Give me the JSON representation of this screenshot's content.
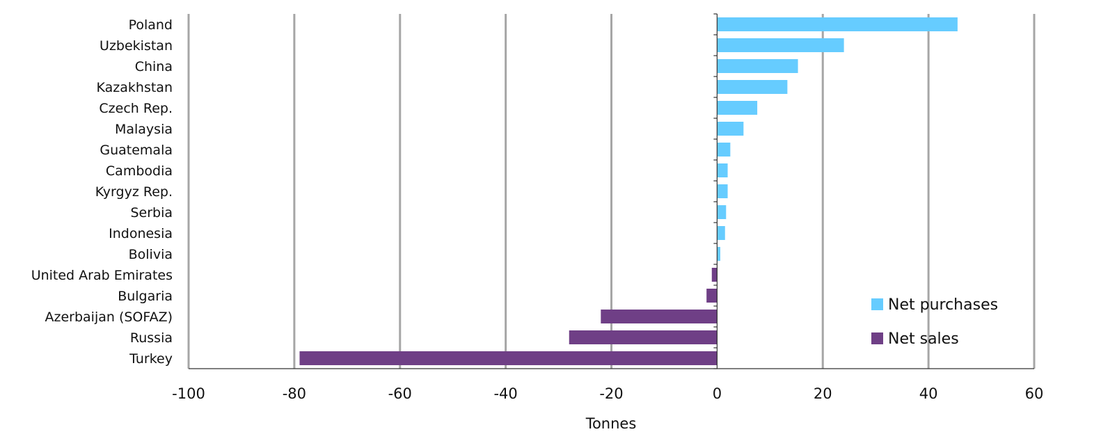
{
  "chart_data": {
    "type": "bar",
    "orientation": "horizontal",
    "title": "",
    "xlabel": "Tonnes",
    "ylabel": "",
    "xlim": [
      -100,
      60
    ],
    "xticks": [
      -100,
      -80,
      -60,
      -40,
      -20,
      0,
      20,
      40,
      60
    ],
    "xtick_labels": [
      "-100",
      "-80",
      "-60",
      "-40",
      "-20",
      "0",
      "20",
      "40",
      "60"
    ],
    "grid": "vertical",
    "legend_position": "bottom-right",
    "categories": [
      "Poland",
      "Uzbekistan",
      "China",
      "Kazakhstan",
      "Czech Rep.",
      "Malaysia",
      "Guatemala",
      "Cambodia",
      "Kyrgyz Rep.",
      "Serbia",
      "Indonesia",
      "Bolivia",
      "United Arab Emirates",
      "Bulgaria",
      "Azerbaijan (SOFAZ)",
      "Russia",
      "Turkey"
    ],
    "values": [
      45.5,
      24,
      15.3,
      13.3,
      7.6,
      5.0,
      2.5,
      2.0,
      2.0,
      1.7,
      1.5,
      0.6,
      -1.0,
      -2.0,
      -22,
      -28,
      -79
    ],
    "series": [
      {
        "name": "Net purchases",
        "color": "#66ccff"
      },
      {
        "name": "Net sales",
        "color": "#6f3f86"
      }
    ]
  }
}
